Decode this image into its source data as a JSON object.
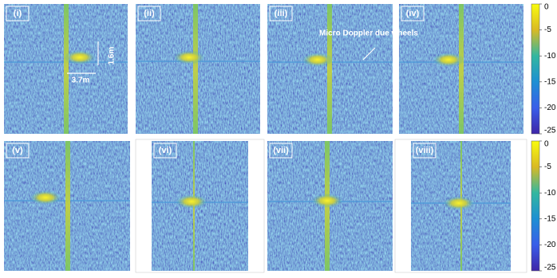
{
  "panels": [
    {
      "label": "(i)"
    },
    {
      "label": "(ii)"
    },
    {
      "label": "(iii)"
    },
    {
      "label": "(iv)"
    },
    {
      "label": "(v)"
    },
    {
      "label": "(vi)"
    },
    {
      "label": "(vii)"
    },
    {
      "label": "(viii)"
    }
  ],
  "annotations": {
    "height": "1.6m",
    "width": "3.7m",
    "micro_doppler": "Micro Doppler due wheels"
  },
  "colorbars": [
    {
      "lim": [
        -25,
        0
      ],
      "ticks": [
        0,
        -5,
        -10,
        -15,
        -20,
        -25
      ]
    },
    {
      "lim": [
        -25,
        0
      ],
      "ticks": [
        0,
        -5,
        -10,
        -15,
        -20,
        -25
      ]
    }
  ]
}
